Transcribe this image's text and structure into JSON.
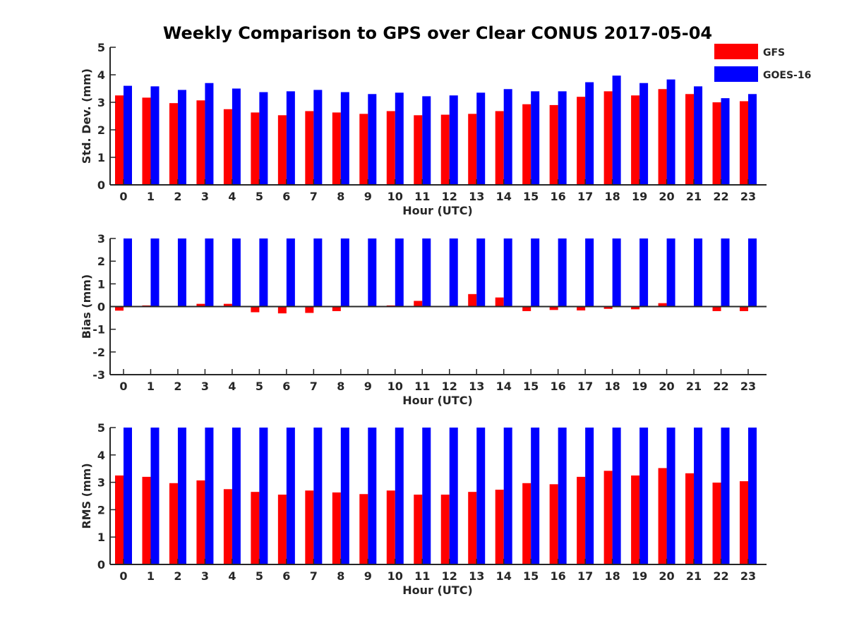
{
  "title": "Weekly Comparison to GPS over Clear CONUS 2017-05-04",
  "legend": [
    {
      "name": "GFS",
      "color": "#ff0000"
    },
    {
      "name": "GOES-16",
      "color": "#0000ff"
    }
  ],
  "colors": {
    "gfs": "#ff0000",
    "goes": "#0000ff",
    "axis": "#262626"
  },
  "chart_data": [
    {
      "type": "bar",
      "title": "Weekly Comparison to GPS over Clear CONUS 2017-05-04",
      "xlabel": "Hour (UTC)",
      "ylabel": "Std. Dev. (mm)",
      "ylim": [
        0,
        5
      ],
      "yticks": [
        "0",
        "1",
        "2",
        "3",
        "4",
        "5"
      ],
      "categories": [
        "0",
        "1",
        "2",
        "3",
        "4",
        "5",
        "6",
        "7",
        "8",
        "9",
        "10",
        "11",
        "12",
        "13",
        "14",
        "15",
        "16",
        "17",
        "18",
        "19",
        "20",
        "21",
        "22",
        "23"
      ],
      "legend_position": "top-right",
      "series": [
        {
          "name": "GFS",
          "values": [
            3.25,
            3.17,
            2.97,
            3.07,
            2.75,
            2.63,
            2.53,
            2.68,
            2.63,
            2.58,
            2.68,
            2.53,
            2.55,
            2.58,
            2.68,
            2.93,
            2.9,
            3.2,
            3.4,
            3.25,
            3.48,
            3.3,
            3.0,
            3.04
          ]
        },
        {
          "name": "GOES-16",
          "values": [
            3.6,
            3.58,
            3.45,
            3.7,
            3.5,
            3.37,
            3.4,
            3.45,
            3.37,
            3.3,
            3.35,
            3.22,
            3.25,
            3.35,
            3.48,
            3.4,
            3.4,
            3.73,
            3.97,
            3.7,
            3.83,
            3.58,
            3.15,
            3.3
          ]
        }
      ]
    },
    {
      "type": "bar",
      "xlabel": "Hour (UTC)",
      "ylabel": "Bias (mm)",
      "ylim": [
        -3,
        3
      ],
      "yticks": [
        "-3",
        "-2",
        "-1",
        "0",
        "1",
        "2",
        "3"
      ],
      "categories": [
        "0",
        "1",
        "2",
        "3",
        "4",
        "5",
        "6",
        "7",
        "8",
        "9",
        "10",
        "11",
        "12",
        "13",
        "14",
        "15",
        "16",
        "17",
        "18",
        "19",
        "20",
        "21",
        "22",
        "23"
      ],
      "series": [
        {
          "name": "GFS",
          "values": [
            -0.18,
            0.05,
            -0.03,
            0.12,
            0.12,
            -0.25,
            -0.3,
            -0.28,
            -0.2,
            -0.03,
            0.05,
            0.25,
            0.02,
            0.55,
            0.4,
            -0.2,
            -0.15,
            -0.17,
            -0.1,
            -0.12,
            0.15,
            0.0,
            -0.2,
            -0.2
          ]
        },
        {
          "name": "GOES-16",
          "values": [
            3,
            3,
            3,
            3,
            3,
            3,
            3,
            3,
            3,
            3,
            3,
            3,
            3,
            3,
            3,
            3,
            3,
            3,
            3,
            3,
            3,
            3,
            3,
            3
          ]
        }
      ]
    },
    {
      "type": "bar",
      "xlabel": "Hour (UTC)",
      "ylabel": "RMS (mm)",
      "ylim": [
        0,
        5
      ],
      "yticks": [
        "0",
        "1",
        "2",
        "3",
        "4",
        "5"
      ],
      "categories": [
        "0",
        "1",
        "2",
        "3",
        "4",
        "5",
        "6",
        "7",
        "8",
        "9",
        "10",
        "11",
        "12",
        "13",
        "14",
        "15",
        "16",
        "17",
        "18",
        "19",
        "20",
        "21",
        "22",
        "23"
      ],
      "series": [
        {
          "name": "GFS",
          "values": [
            3.25,
            3.2,
            2.97,
            3.07,
            2.75,
            2.65,
            2.55,
            2.7,
            2.63,
            2.57,
            2.7,
            2.55,
            2.55,
            2.65,
            2.73,
            2.97,
            2.93,
            3.2,
            3.42,
            3.25,
            3.52,
            3.33,
            2.99,
            3.04
          ]
        },
        {
          "name": "GOES-16",
          "values": [
            5,
            5,
            5,
            5,
            5,
            5,
            5,
            5,
            5,
            5,
            5,
            5,
            5,
            5,
            5,
            5,
            5,
            5,
            5,
            5,
            5,
            5,
            5,
            5
          ]
        }
      ]
    }
  ]
}
